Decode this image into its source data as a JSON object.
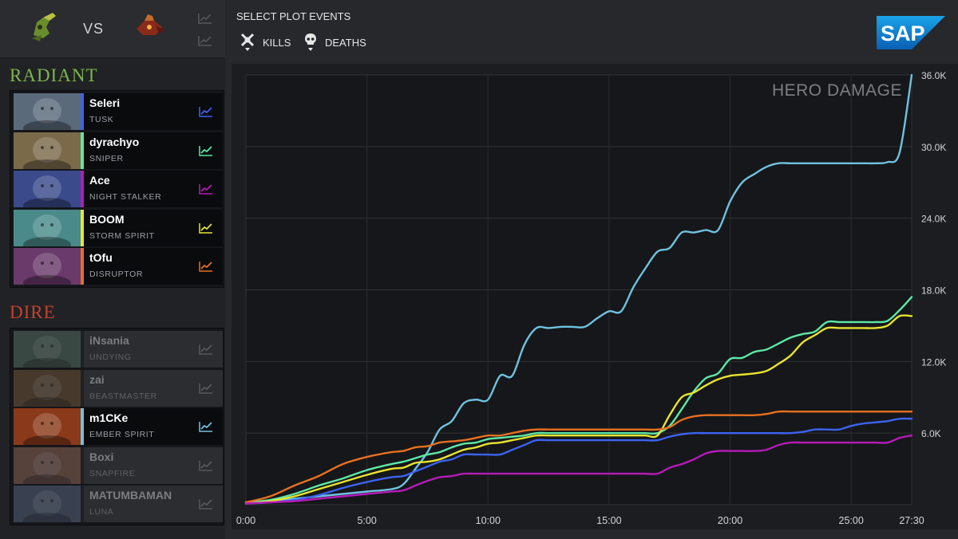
{
  "matchup": {
    "vs_label": "VS"
  },
  "radiant": {
    "title": "RADIANT",
    "players": [
      {
        "name": "Seleri",
        "hero": "TUSK",
        "color": "#3b63f0",
        "active": true
      },
      {
        "name": "dyrachyo",
        "hero": "SNIPER",
        "color": "#5de8a6",
        "active": true
      },
      {
        "name": "Ace",
        "hero": "NIGHT STALKER",
        "color": "#b51ab8",
        "active": true
      },
      {
        "name": "BOOM",
        "hero": "STORM SPIRIT",
        "color": "#e8e430",
        "active": true
      },
      {
        "name": "tOfu",
        "hero": "DISRUPTOR",
        "color": "#e8701f",
        "active": true
      }
    ]
  },
  "dire": {
    "title": "DIRE",
    "players": [
      {
        "name": "iNsania",
        "hero": "UNDYING",
        "color": "#5a5d60",
        "active": false
      },
      {
        "name": "zai",
        "hero": "BEASTMASTER",
        "color": "#5a5d60",
        "active": false
      },
      {
        "name": "m1CKe",
        "hero": "EMBER SPIRIT",
        "color": "#6fc2e0",
        "active": true
      },
      {
        "name": "Boxi",
        "hero": "SNAPFIRE",
        "color": "#5a5d60",
        "active": false
      },
      {
        "name": "MATUMBAMAN",
        "hero": "LUNA",
        "color": "#5a5d60",
        "active": false
      }
    ]
  },
  "controls": {
    "plot_title": "SELECT PLOT EVENTS",
    "kills_label": "KILLS",
    "deaths_label": "DEATHS"
  },
  "brand": {
    "logo_text": "SAP"
  },
  "chart_data": {
    "type": "line",
    "title": "HERO DAMAGE",
    "xlabel": "",
    "ylabel": "",
    "x_ticks": [
      "0:00",
      "5:00",
      "10:00",
      "15:00",
      "20:00",
      "25:00",
      "27:30"
    ],
    "y_ticks": [
      "36.0K",
      "30.0K",
      "24.0K",
      "18.0K",
      "12.0K",
      "6.0K"
    ],
    "xlim": [
      0,
      27.5
    ],
    "ylim": [
      0,
      36000
    ],
    "grid": true,
    "series": [
      {
        "name": "m1CKe",
        "color": "#6fc2e0",
        "x": [
          0,
          1,
          2,
          3,
          4,
          5,
          6,
          6.5,
          7,
          7.5,
          8,
          8.5,
          9,
          9.5,
          10,
          10.5,
          11,
          11.5,
          12,
          12.5,
          13,
          13.5,
          14,
          14.5,
          15,
          15.5,
          16,
          16.5,
          17,
          17.5,
          18,
          18.5,
          19,
          19.5,
          20,
          20.5,
          21,
          21.5,
          22,
          22.5,
          23,
          23.5,
          24,
          24.5,
          25,
          25.5,
          26,
          26.5,
          27,
          27.5
        ],
        "y": [
          200,
          300,
          500,
          700,
          900,
          1100,
          1300,
          1700,
          3000,
          4400,
          6300,
          7000,
          8500,
          8800,
          8800,
          10800,
          10800,
          13400,
          14800,
          14800,
          14900,
          14900,
          14900,
          15600,
          16200,
          16200,
          18200,
          19800,
          21200,
          21500,
          22800,
          22800,
          23000,
          23000,
          25400,
          27000,
          27700,
          28300,
          28600,
          28600,
          28600,
          28600,
          28600,
          28600,
          28600,
          28600,
          28600,
          28700,
          29500,
          36000
        ]
      },
      {
        "name": "Seleri",
        "color": "#3b63f0",
        "x": [
          0,
          1,
          2,
          3,
          4,
          5,
          6,
          6.5,
          7,
          7.5,
          8,
          8.5,
          9,
          9.5,
          10,
          10.5,
          11,
          11.5,
          12,
          12.5,
          13,
          13.5,
          14,
          14.5,
          15,
          15.5,
          16,
          16.5,
          17,
          17.5,
          18,
          18.5,
          19,
          19.5,
          20,
          20.5,
          21,
          21.5,
          22,
          22.5,
          23,
          23.5,
          24,
          24.5,
          25,
          25.5,
          26,
          26.5,
          27,
          27.5
        ],
        "y": [
          100,
          200,
          400,
          800,
          1400,
          1900,
          2300,
          2400,
          2800,
          3200,
          3600,
          3800,
          4200,
          4200,
          4200,
          4200,
          4600,
          5000,
          5400,
          5400,
          5400,
          5400,
          5400,
          5400,
          5400,
          5400,
          5400,
          5400,
          5400,
          5700,
          5900,
          6000,
          6000,
          6000,
          6000,
          6000,
          6000,
          6000,
          6000,
          6000,
          6100,
          6300,
          6300,
          6300,
          6600,
          6800,
          6900,
          7000,
          7200,
          7200
        ]
      },
      {
        "name": "dyrachyo",
        "color": "#5de8a6",
        "x": [
          0,
          1,
          2,
          3,
          4,
          5,
          6,
          6.5,
          7,
          7.5,
          8,
          8.5,
          9,
          9.5,
          10,
          10.5,
          11,
          11.5,
          12,
          12.5,
          13,
          13.5,
          14,
          14.5,
          15,
          15.5,
          16,
          16.5,
          17,
          17.5,
          18,
          18.5,
          19,
          19.5,
          20,
          20.5,
          21,
          21.5,
          22,
          22.5,
          23,
          23.5,
          24,
          24.5,
          25,
          25.5,
          26,
          26.5,
          27,
          27.5
        ],
        "y": [
          200,
          400,
          900,
          1600,
          2200,
          2900,
          3400,
          3600,
          3900,
          4200,
          4400,
          4800,
          5100,
          5200,
          5500,
          5600,
          5700,
          5800,
          6000,
          6000,
          6000,
          6000,
          6000,
          6000,
          6000,
          6000,
          6000,
          6000,
          6000,
          6600,
          8000,
          9500,
          10600,
          11000,
          12200,
          12300,
          12800,
          13000,
          13500,
          14000,
          14300,
          14500,
          15300,
          15300,
          15300,
          15300,
          15300,
          15400,
          16300,
          17400
        ]
      },
      {
        "name": "BOOM",
        "color": "#e8e430",
        "x": [
          0,
          1,
          2,
          3,
          4,
          5,
          6,
          6.5,
          7,
          7.5,
          8,
          8.5,
          9,
          9.5,
          10,
          10.5,
          11,
          11.5,
          12,
          12.5,
          13,
          13.5,
          14,
          14.5,
          15,
          15.5,
          16,
          16.5,
          17,
          17.5,
          18,
          18.5,
          19,
          19.5,
          20,
          20.5,
          21,
          21.5,
          22,
          22.5,
          23,
          23.5,
          24,
          24.5,
          25,
          25.5,
          26,
          26.5,
          27,
          27.5
        ],
        "y": [
          100,
          300,
          700,
          1300,
          1900,
          2500,
          3000,
          3100,
          3500,
          3600,
          3800,
          4200,
          4600,
          4800,
          5100,
          5200,
          5400,
          5600,
          5800,
          5800,
          5800,
          5800,
          5800,
          5800,
          5800,
          5800,
          5800,
          5800,
          5800,
          7500,
          9000,
          9400,
          10000,
          10500,
          10800,
          10900,
          11000,
          11200,
          11800,
          12500,
          13600,
          14200,
          14800,
          14800,
          14800,
          14800,
          14800,
          15000,
          15800,
          15800
        ]
      },
      {
        "name": "tOfu",
        "color": "#e8701f",
        "x": [
          0,
          1,
          2,
          3,
          4,
          5,
          6,
          6.5,
          7,
          7.5,
          8,
          8.5,
          9,
          9.5,
          10,
          10.5,
          11,
          11.5,
          12,
          12.5,
          13,
          13.5,
          14,
          14.5,
          15,
          15.5,
          16,
          16.5,
          17,
          17.5,
          18,
          18.5,
          19,
          19.5,
          20,
          20.5,
          21,
          21.5,
          22,
          22.5,
          23,
          23.5,
          24,
          24.5,
          25,
          25.5,
          26,
          26.5,
          27,
          27.5
        ],
        "y": [
          200,
          700,
          1600,
          2400,
          3400,
          4000,
          4400,
          4500,
          4800,
          4900,
          5200,
          5300,
          5400,
          5600,
          5800,
          5800,
          6000,
          6200,
          6300,
          6300,
          6300,
          6300,
          6300,
          6300,
          6300,
          6300,
          6300,
          6300,
          6300,
          6500,
          7100,
          7400,
          7500,
          7500,
          7500,
          7500,
          7500,
          7600,
          7800,
          7800,
          7800,
          7800,
          7800,
          7800,
          7800,
          7800,
          7800,
          7800,
          7800,
          7800
        ]
      },
      {
        "name": "Ace",
        "color": "#b51ab8",
        "x": [
          0,
          1,
          2,
          3,
          4,
          5,
          6,
          6.5,
          7,
          7.5,
          8,
          8.5,
          9,
          9.5,
          10,
          10.5,
          11,
          11.5,
          12,
          12.5,
          13,
          13.5,
          14,
          14.5,
          15,
          15.5,
          16,
          16.5,
          17,
          17.5,
          18,
          18.5,
          19,
          19.5,
          20,
          20.5,
          21,
          21.5,
          22,
          22.5,
          23,
          23.5,
          24,
          24.5,
          25,
          25.5,
          26,
          26.5,
          27,
          27.5
        ],
        "y": [
          100,
          200,
          300,
          500,
          700,
          900,
          1100,
          1200,
          1600,
          2000,
          2300,
          2400,
          2600,
          2600,
          2600,
          2600,
          2600,
          2600,
          2600,
          2600,
          2600,
          2600,
          2600,
          2600,
          2600,
          2600,
          2600,
          2600,
          2600,
          3100,
          3400,
          3800,
          4300,
          4500,
          4500,
          4500,
          4500,
          4600,
          5000,
          5200,
          5200,
          5200,
          5200,
          5200,
          5200,
          5200,
          5200,
          5200,
          5600,
          5800
        ]
      }
    ]
  }
}
